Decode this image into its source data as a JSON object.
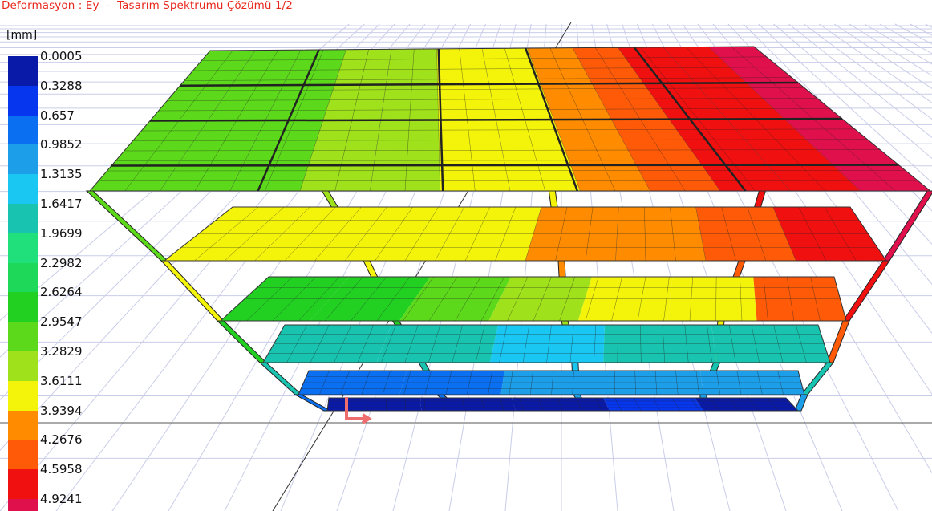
{
  "title": "Deformasyon : Ey  -  Tasarım Spektrumu Çözümü 1/2",
  "unit": "[mm]",
  "legend": {
    "values": [
      "0.0005",
      "0.3288",
      "0.657",
      "0.9852",
      "1.3135",
      "1.6417",
      "1.9699",
      "2.2982",
      "2.6264",
      "2.9547",
      "3.2829",
      "3.6111",
      "3.9394",
      "4.2676",
      "4.5958",
      "4.9241"
    ],
    "colors": [
      "#0a1aa8",
      "#0636ee",
      "#0a6ff0",
      "#1c9ee8",
      "#19c7f2",
      "#18c4b0",
      "#1fe07a",
      "#1ed85a",
      "#22d022",
      "#5cd91a",
      "#9fe11a",
      "#f4f40a",
      "#ff8c00",
      "#ff5a08",
      "#f01010",
      "#e0104c"
    ]
  },
  "colors": {
    "background": "#ffffff",
    "grid": "#c9cde8",
    "mesh": "#222222",
    "title": "#e8281c",
    "axis_marker": "#ef6d6d"
  }
}
